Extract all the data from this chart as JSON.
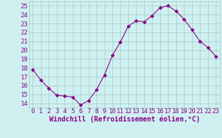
{
  "x": [
    0,
    1,
    2,
    3,
    4,
    5,
    6,
    7,
    8,
    9,
    10,
    11,
    12,
    13,
    14,
    15,
    16,
    17,
    18,
    19,
    20,
    21,
    22,
    23
  ],
  "y": [
    17.8,
    16.6,
    15.7,
    14.9,
    14.8,
    14.7,
    13.8,
    14.3,
    15.5,
    17.2,
    19.4,
    20.9,
    22.7,
    23.3,
    23.2,
    23.9,
    24.8,
    25.0,
    24.4,
    23.5,
    22.3,
    21.0,
    20.3,
    19.3
  ],
  "line_color": "#880088",
  "marker": "D",
  "marker_size": 2.5,
  "bg_color": "#cff0f0",
  "grid_color": "#aacccc",
  "axis_label_color": "#880088",
  "tick_label_color": "#880088",
  "xlabel": "Windchill (Refroidissement éolien,°C)",
  "ylim": [
    13.5,
    25.5
  ],
  "xlim": [
    -0.5,
    23.5
  ],
  "yticks": [
    14,
    15,
    16,
    17,
    18,
    19,
    20,
    21,
    22,
    23,
    24,
    25
  ],
  "xticks": [
    0,
    1,
    2,
    3,
    4,
    5,
    6,
    7,
    8,
    9,
    10,
    11,
    12,
    13,
    14,
    15,
    16,
    17,
    18,
    19,
    20,
    21,
    22,
    23
  ],
  "tick_font_size": 6.5,
  "label_font_size": 7.0,
  "linewidth": 0.8
}
